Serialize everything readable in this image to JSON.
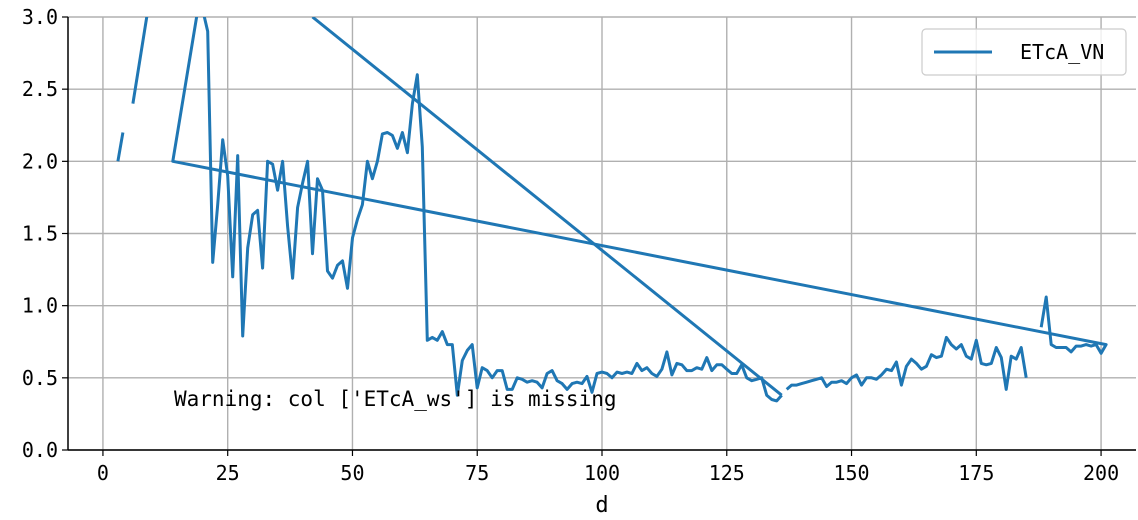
{
  "chart_data": {
    "type": "line",
    "xlabel": "d",
    "ylabel": "",
    "xlim": [
      -7,
      207
    ],
    "ylim": [
      0.0,
      3.0
    ],
    "grid": true,
    "legend_position": "top-right",
    "x_ticks": [
      0,
      25,
      50,
      75,
      100,
      125,
      150,
      175,
      200
    ],
    "x_tick_labels": [
      "0",
      "25",
      "50",
      "75",
      "100",
      "125",
      "150",
      "175",
      "200"
    ],
    "y_ticks": [
      0.0,
      0.5,
      1.0,
      1.5,
      2.0,
      2.5,
      3.0
    ],
    "y_tick_labels": [
      "0.0",
      "0.5",
      "1.0",
      "1.5",
      "2.0",
      "2.5",
      "3.0"
    ],
    "annotation": "Warning: col ['ETcA_ws'] is missing",
    "series": [
      {
        "name": "ETcA_VN",
        "color": "#1f77b4",
        "segments": [
          [
            [
              3,
              2.0
            ],
            [
              4,
              2.2
            ]
          ],
          [
            [
              6,
              2.4
            ],
            [
              9,
              3.05
            ]
          ],
          [
            [
              20,
              3.05
            ],
            [
              21,
              2.9
            ],
            [
              22,
              1.3
            ],
            [
              23,
              1.7
            ],
            [
              24,
              2.15
            ],
            [
              25,
              1.9
            ],
            [
              26,
              1.2
            ],
            [
              27,
              2.04
            ],
            [
              28,
              0.79
            ],
            [
              29,
              1.4
            ],
            [
              30,
              1.63
            ],
            [
              31,
              1.66
            ],
            [
              32,
              1.26
            ],
            [
              33,
              2.0
            ],
            [
              34,
              1.98
            ],
            [
              35,
              1.8
            ],
            [
              36,
              2.0
            ],
            [
              37,
              1.55
            ],
            [
              38,
              1.19
            ],
            [
              39,
              1.68
            ],
            [
              40,
              1.85
            ],
            [
              41,
              2.0
            ],
            [
              42,
              1.36
            ],
            [
              43,
              1.88
            ],
            [
              44,
              1.8
            ],
            [
              45,
              1.24
            ],
            [
              46,
              1.19
            ],
            [
              47,
              1.28
            ],
            [
              48,
              1.31
            ],
            [
              49,
              1.12
            ],
            [
              50,
              1.47
            ],
            [
              51,
              1.6
            ],
            [
              52,
              1.7
            ],
            [
              53,
              2.0
            ],
            [
              54,
              1.88
            ],
            [
              55,
              2.0
            ],
            [
              56,
              2.19
            ],
            [
              57,
              2.2
            ],
            [
              58,
              2.18
            ],
            [
              59,
              2.09
            ],
            [
              60,
              2.2
            ],
            [
              61,
              2.06
            ],
            [
              62,
              2.4
            ],
            [
              63,
              2.6
            ],
            [
              64,
              2.1
            ],
            [
              65,
              0.76
            ],
            [
              66,
              0.78
            ],
            [
              67,
              0.76
            ],
            [
              68,
              0.82
            ],
            [
              69,
              0.73
            ],
            [
              70,
              0.73
            ],
            [
              71,
              0.38
            ],
            [
              72,
              0.62
            ],
            [
              73,
              0.69
            ],
            [
              74,
              0.73
            ],
            [
              75,
              0.43
            ],
            [
              76,
              0.57
            ],
            [
              77,
              0.55
            ],
            [
              78,
              0.5
            ],
            [
              79,
              0.55
            ],
            [
              80,
              0.55
            ],
            [
              81,
              0.42
            ],
            [
              82,
              0.42
            ],
            [
              83,
              0.5
            ],
            [
              84,
              0.49
            ],
            [
              85,
              0.47
            ],
            [
              86,
              0.48
            ],
            [
              87,
              0.47
            ],
            [
              88,
              0.43
            ],
            [
              89,
              0.53
            ],
            [
              90,
              0.55
            ],
            [
              91,
              0.48
            ],
            [
              92,
              0.46
            ],
            [
              93,
              0.42
            ],
            [
              94,
              0.46
            ],
            [
              95,
              0.47
            ],
            [
              96,
              0.46
            ],
            [
              97,
              0.51
            ],
            [
              98,
              0.4
            ],
            [
              99,
              0.53
            ],
            [
              100,
              0.54
            ],
            [
              101,
              0.53
            ],
            [
              102,
              0.5
            ],
            [
              103,
              0.54
            ],
            [
              104,
              0.53
            ],
            [
              105,
              0.54
            ],
            [
              106,
              0.53
            ],
            [
              107,
              0.6
            ],
            [
              108,
              0.55
            ],
            [
              109,
              0.57
            ],
            [
              110,
              0.53
            ],
            [
              111,
              0.51
            ],
            [
              112,
              0.56
            ],
            [
              113,
              0.68
            ],
            [
              114,
              0.52
            ],
            [
              115,
              0.6
            ],
            [
              116,
              0.59
            ],
            [
              117,
              0.55
            ],
            [
              118,
              0.55
            ],
            [
              119,
              0.57
            ],
            [
              120,
              0.56
            ],
            [
              121,
              0.64
            ],
            [
              122,
              0.55
            ],
            [
              123,
              0.59
            ],
            [
              124,
              0.59
            ],
            [
              125,
              0.56
            ],
            [
              126,
              0.53
            ],
            [
              127,
              0.53
            ],
            [
              128,
              0.59
            ],
            [
              129,
              0.5
            ],
            [
              130,
              0.48
            ],
            [
              131,
              0.49
            ],
            [
              132,
              0.5
            ],
            [
              133,
              0.38
            ],
            [
              134,
              0.35
            ],
            [
              135,
              0.34
            ],
            [
              136,
              0.38
            ]
          ],
          [
            [
              137,
              0.42
            ],
            [
              138,
              0.45
            ],
            [
              139,
              0.45
            ],
            [
              140,
              0.46
            ],
            [
              141,
              0.47
            ],
            [
              142,
              0.48
            ],
            [
              143,
              0.49
            ],
            [
              144,
              0.5
            ],
            [
              145,
              0.44
            ],
            [
              146,
              0.47
            ],
            [
              147,
              0.47
            ],
            [
              148,
              0.48
            ],
            [
              149,
              0.46
            ],
            [
              150,
              0.5
            ],
            [
              151,
              0.52
            ],
            [
              152,
              0.45
            ],
            [
              153,
              0.5
            ],
            [
              154,
              0.5
            ],
            [
              155,
              0.49
            ],
            [
              156,
              0.52
            ],
            [
              157,
              0.56
            ],
            [
              158,
              0.55
            ],
            [
              159,
              0.61
            ],
            [
              160,
              0.45
            ],
            [
              161,
              0.58
            ],
            [
              162,
              0.63
            ],
            [
              163,
              0.6
            ],
            [
              164,
              0.56
            ],
            [
              165,
              0.58
            ],
            [
              166,
              0.66
            ],
            [
              167,
              0.64
            ],
            [
              168,
              0.65
            ],
            [
              169,
              0.78
            ],
            [
              170,
              0.73
            ],
            [
              171,
              0.7
            ],
            [
              172,
              0.73
            ],
            [
              173,
              0.65
            ],
            [
              174,
              0.63
            ],
            [
              175,
              0.76
            ],
            [
              176,
              0.6
            ],
            [
              177,
              0.59
            ],
            [
              178,
              0.6
            ],
            [
              179,
              0.71
            ],
            [
              180,
              0.64
            ],
            [
              181,
              0.42
            ],
            [
              182,
              0.65
            ],
            [
              183,
              0.63
            ],
            [
              184,
              0.71
            ],
            [
              185,
              0.5
            ]
          ],
          [
            [
              188,
              0.85
            ],
            [
              189,
              1.06
            ],
            [
              190,
              0.73
            ],
            [
              191,
              0.71
            ],
            [
              192,
              0.71
            ],
            [
              193,
              0.71
            ],
            [
              194,
              0.68
            ],
            [
              195,
              0.72
            ],
            [
              196,
              0.72
            ],
            [
              197,
              0.73
            ],
            [
              198,
              0.72
            ],
            [
              199,
              0.73
            ],
            [
              200,
              0.67
            ],
            [
              201,
              0.73
            ],
            [
              14,
              2.0
            ],
            [
              19,
              3.05
            ]
          ],
          [
            [
              42,
              3.0
            ],
            [
              136,
              0.38
            ]
          ]
        ]
      }
    ]
  }
}
